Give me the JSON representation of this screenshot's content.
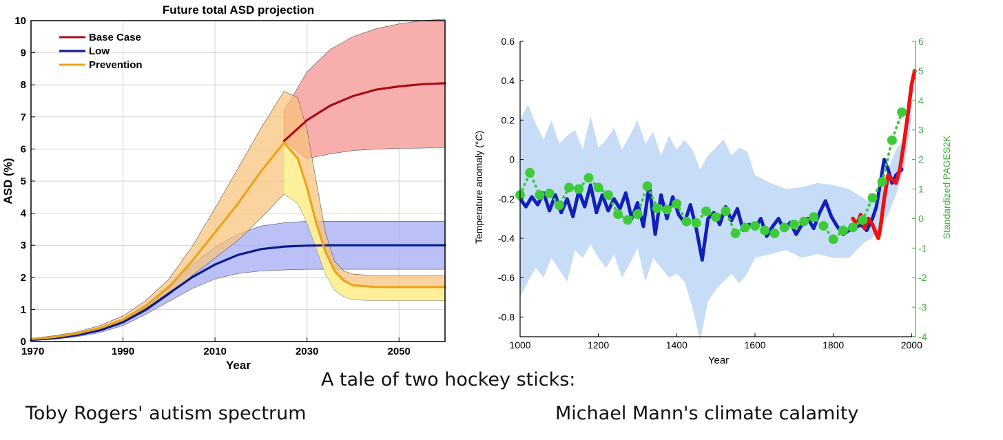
{
  "caption": {
    "heading": "A tale of two hockey sticks:",
    "left": "Toby Rogers' autism spectrum",
    "right": "Michael Mann's climate calamity"
  },
  "chart_data": [
    {
      "type": "line",
      "title": "Future total ASD projection",
      "xlabel": "Year",
      "ylabel": "ASD (%)",
      "xlim": [
        1970,
        2060
      ],
      "ylim": [
        0,
        10
      ],
      "xticks": [
        1970,
        1990,
        2010,
        2030,
        2050
      ],
      "yticks": [
        0,
        1,
        2,
        3,
        4,
        5,
        6,
        7,
        8,
        9,
        10
      ],
      "grid": true,
      "legend": "top-left",
      "series": [
        {
          "name": "Base Case",
          "color": "#a50f15",
          "band_color": "#f9aaaa",
          "x": [
            2025,
            2030,
            2035,
            2040,
            2045,
            2050,
            2055,
            2060
          ],
          "y": [
            6.25,
            6.9,
            7.35,
            7.65,
            7.85,
            7.95,
            8.02,
            8.05
          ],
          "band_x": [
            2025,
            2030,
            2035,
            2040,
            2045,
            2050,
            2055,
            2060
          ],
          "band_lower": [
            6.25,
            5.7,
            5.85,
            5.95,
            6.0,
            6.02,
            6.03,
            6.05
          ],
          "band_upper": [
            7.2,
            8.4,
            9.1,
            9.5,
            9.75,
            9.9,
            10.0,
            10.05
          ]
        },
        {
          "name": "Low",
          "color": "#0b1a8c",
          "band_color": "#aab0f5",
          "x": [
            1970,
            1975,
            1980,
            1985,
            1990,
            1995,
            2000,
            2005,
            2010,
            2015,
            2020,
            2025,
            2030,
            2035,
            2040,
            2050,
            2060
          ],
          "y": [
            0.05,
            0.1,
            0.2,
            0.35,
            0.6,
            1.0,
            1.5,
            2.0,
            2.4,
            2.7,
            2.88,
            2.96,
            2.99,
            3.0,
            3.0,
            3.0,
            3.0
          ],
          "band_x": [
            1970,
            1975,
            1980,
            1985,
            1990,
            1995,
            2000,
            2005,
            2010,
            2015,
            2020,
            2025,
            2030,
            2035,
            2040,
            2050,
            2060
          ],
          "band_lower": [
            0.03,
            0.07,
            0.15,
            0.28,
            0.5,
            0.85,
            1.25,
            1.65,
            1.95,
            2.12,
            2.2,
            2.23,
            2.25,
            2.25,
            2.25,
            2.25,
            2.25
          ],
          "band_upper": [
            0.08,
            0.14,
            0.26,
            0.45,
            0.72,
            1.15,
            1.75,
            2.4,
            2.95,
            3.35,
            3.6,
            3.7,
            3.75,
            3.75,
            3.75,
            3.75,
            3.75
          ]
        },
        {
          "name": "Prevention",
          "color": "#eba31a",
          "band_color": "#f8c27a",
          "x": [
            1970,
            1975,
            1980,
            1985,
            1990,
            1995,
            2000,
            2005,
            2010,
            2015,
            2020,
            2025,
            2028,
            2030,
            2032,
            2034,
            2036,
            2038,
            2040,
            2045,
            2050,
            2060
          ],
          "y": [
            0.08,
            0.14,
            0.25,
            0.42,
            0.68,
            1.1,
            1.7,
            2.5,
            3.4,
            4.3,
            5.3,
            6.2,
            5.7,
            4.8,
            3.7,
            2.8,
            2.2,
            1.9,
            1.75,
            1.7,
            1.7,
            1.7
          ],
          "band_x": [
            1970,
            1975,
            1980,
            1985,
            1990,
            1995,
            2000,
            2005,
            2010,
            2015,
            2020,
            2025,
            2028,
            2030,
            2032,
            2034,
            2036,
            2038,
            2040,
            2045,
            2050,
            2060
          ],
          "band_lower": [
            0.05,
            0.1,
            0.2,
            0.35,
            0.58,
            0.95,
            1.45,
            2.05,
            2.6,
            3.15,
            3.85,
            4.6,
            4.3,
            3.7,
            2.9,
            2.1,
            1.6,
            1.4,
            1.3,
            1.28,
            1.28,
            1.28
          ],
          "band_upper": [
            0.1,
            0.18,
            0.3,
            0.5,
            0.8,
            1.28,
            1.95,
            2.95,
            4.15,
            5.4,
            6.65,
            7.8,
            7.6,
            6.6,
            5.0,
            3.4,
            2.5,
            2.2,
            2.1,
            2.05,
            2.05,
            2.05
          ]
        }
      ]
    },
    {
      "type": "line",
      "title": "",
      "xlabel": "Year",
      "ylabel": "Temperature anomaly (°C)",
      "y2label": "Standardized PAGES2K",
      "xlim": [
        1000,
        2010
      ],
      "ylim": [
        -0.9,
        0.6
      ],
      "y2lim": [
        -4,
        6
      ],
      "xticks": [
        1000,
        1200,
        1400,
        1600,
        1800,
        2000
      ],
      "yticks": [
        -0.8,
        -0.6,
        -0.4,
        -0.2,
        0,
        0.2,
        0.4,
        0.6
      ],
      "y2ticks": [
        -4,
        -3,
        -2,
        -1,
        0,
        1,
        2,
        3,
        4,
        5,
        6
      ],
      "grid": false,
      "legend": "none",
      "band": {
        "color": "#c6dcf7",
        "x": [
          1000,
          1020,
          1040,
          1060,
          1080,
          1100,
          1120,
          1140,
          1160,
          1180,
          1200,
          1220,
          1240,
          1260,
          1280,
          1300,
          1320,
          1340,
          1360,
          1380,
          1400,
          1420,
          1440,
          1460,
          1480,
          1500,
          1520,
          1540,
          1560,
          1580,
          1600,
          1640,
          1680,
          1720,
          1760,
          1800,
          1840,
          1880,
          1900,
          1920,
          1940,
          1960,
          1980,
          2000
        ],
        "lower": [
          -0.7,
          -0.62,
          -0.55,
          -0.6,
          -0.5,
          -0.56,
          -0.62,
          -0.46,
          -0.5,
          -0.43,
          -0.5,
          -0.55,
          -0.48,
          -0.6,
          -0.53,
          -0.45,
          -0.62,
          -0.5,
          -0.55,
          -0.6,
          -0.58,
          -0.62,
          -0.75,
          -0.92,
          -0.72,
          -0.66,
          -0.62,
          -0.58,
          -0.63,
          -0.58,
          -0.5,
          -0.48,
          -0.46,
          -0.5,
          -0.48,
          -0.5,
          -0.5,
          -0.42,
          -0.4,
          -0.35,
          -0.28,
          -0.18,
          -0.05,
          0.2
        ],
        "upper": [
          0.2,
          0.28,
          0.18,
          0.1,
          0.2,
          0.08,
          0.12,
          0.15,
          0.05,
          0.22,
          0.06,
          0.1,
          0.16,
          0.05,
          0.12,
          0.2,
          0.08,
          0.14,
          0.02,
          0.12,
          0.05,
          0.1,
          0.05,
          -0.05,
          0.02,
          0.06,
          0.1,
          0.02,
          0.06,
          0.04,
          -0.08,
          -0.12,
          -0.15,
          -0.14,
          -0.12,
          -0.13,
          -0.15,
          -0.2,
          -0.22,
          -0.15,
          -0.05,
          0.05,
          0.1,
          0.45
        ]
      },
      "series": [
        {
          "color": "#1020b8",
          "axis": "left",
          "x": [
            1000,
            1015,
            1030,
            1045,
            1060,
            1075,
            1090,
            1105,
            1120,
            1135,
            1150,
            1165,
            1180,
            1195,
            1210,
            1225,
            1240,
            1255,
            1270,
            1285,
            1300,
            1315,
            1330,
            1345,
            1360,
            1375,
            1390,
            1405,
            1420,
            1435,
            1450,
            1465,
            1480,
            1495,
            1510,
            1525,
            1540,
            1555,
            1570,
            1585,
            1600,
            1615,
            1630,
            1645,
            1660,
            1675,
            1690,
            1705,
            1720,
            1735,
            1750,
            1765,
            1780,
            1795,
            1810,
            1825,
            1840,
            1855,
            1870,
            1885,
            1900,
            1910,
            1920,
            1930,
            1940,
            1950,
            1960,
            1975
          ],
          "y": [
            -0.2,
            -0.24,
            -0.19,
            -0.23,
            -0.17,
            -0.26,
            -0.18,
            -0.27,
            -0.2,
            -0.29,
            -0.16,
            -0.24,
            -0.13,
            -0.27,
            -0.18,
            -0.26,
            -0.2,
            -0.25,
            -0.17,
            -0.3,
            -0.22,
            -0.34,
            -0.13,
            -0.38,
            -0.18,
            -0.3,
            -0.19,
            -0.28,
            -0.32,
            -0.23,
            -0.35,
            -0.51,
            -0.3,
            -0.27,
            -0.33,
            -0.24,
            -0.31,
            -0.25,
            -0.36,
            -0.33,
            -0.35,
            -0.3,
            -0.39,
            -0.34,
            -0.3,
            -0.36,
            -0.32,
            -0.38,
            -0.33,
            -0.3,
            -0.35,
            -0.27,
            -0.21,
            -0.29,
            -0.34,
            -0.38,
            -0.36,
            -0.35,
            -0.33,
            -0.36,
            -0.3,
            -0.24,
            -0.12,
            0.0,
            -0.05,
            -0.12,
            -0.08,
            -0.05
          ]
        },
        {
          "color": "#ee1111",
          "axis": "left",
          "x": [
            1850,
            1860,
            1870,
            1880,
            1890,
            1900,
            1910,
            1915,
            1920,
            1930,
            1940,
            1950,
            1960,
            1970,
            1980,
            1990,
            2000,
            2008
          ],
          "y": [
            -0.3,
            -0.33,
            -0.28,
            -0.35,
            -0.3,
            -0.33,
            -0.38,
            -0.4,
            -0.35,
            -0.2,
            -0.08,
            -0.1,
            -0.12,
            -0.05,
            0.08,
            0.22,
            0.38,
            0.45
          ]
        },
        {
          "color": "#3ecb3a",
          "axis": "right",
          "x": [
            1000,
            1025,
            1050,
            1075,
            1100,
            1125,
            1150,
            1175,
            1200,
            1225,
            1250,
            1275,
            1300,
            1325,
            1350,
            1375,
            1400,
            1425,
            1450,
            1475,
            1500,
            1525,
            1550,
            1575,
            1600,
            1625,
            1650,
            1675,
            1700,
            1725,
            1750,
            1775,
            1800,
            1825,
            1850,
            1875,
            1900,
            1925,
            1950,
            1975
          ],
          "y": [
            0.8,
            1.55,
            0.8,
            0.85,
            0.45,
            1.05,
            1.0,
            1.38,
            1.05,
            0.8,
            0.15,
            -0.05,
            0.15,
            1.1,
            0.35,
            0.3,
            0.5,
            -0.1,
            -0.15,
            0.25,
            0.05,
            0.25,
            -0.5,
            -0.3,
            -0.25,
            -0.4,
            -0.5,
            -0.3,
            -0.2,
            -0.1,
            0.05,
            -0.25,
            -0.7,
            -0.4,
            -0.3,
            -0.05,
            0.7,
            1.25,
            2.65,
            3.6
          ],
          "style": "dotted-with-markers"
        }
      ]
    }
  ]
}
